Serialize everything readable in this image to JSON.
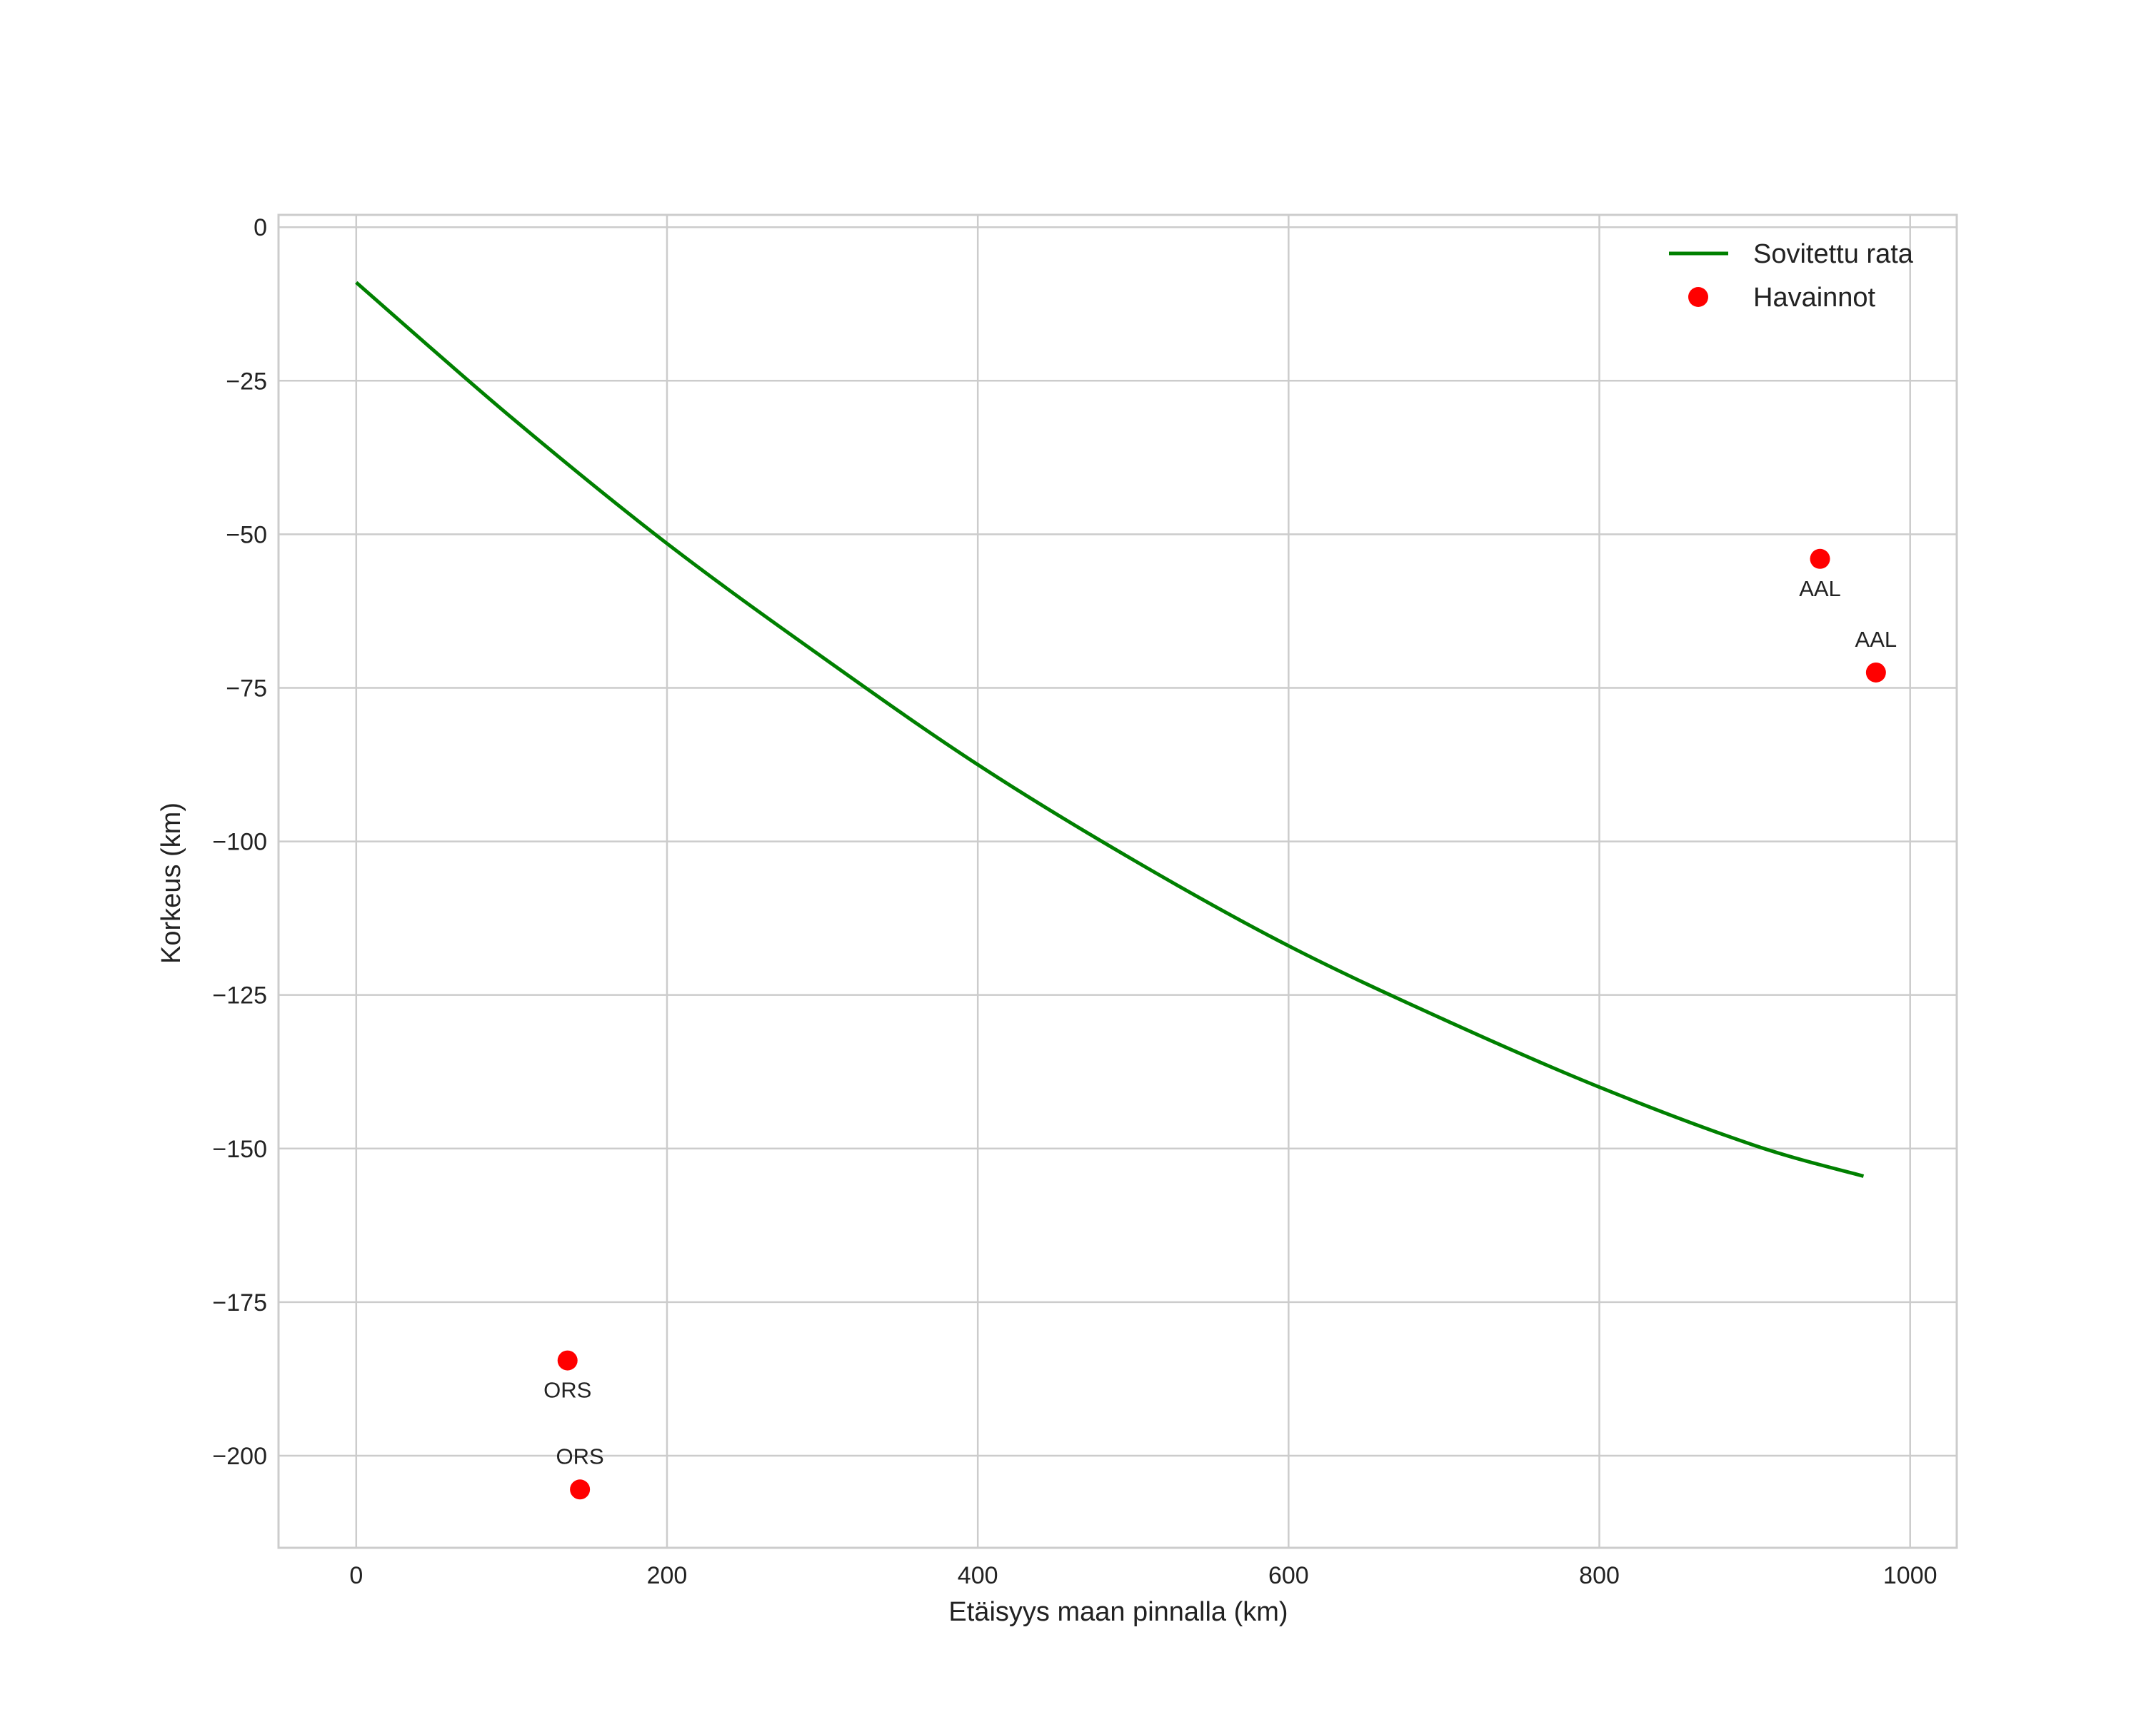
{
  "chart_data": {
    "type": "line",
    "title": "",
    "xlabel": "Etäisyys maan pinnalla (km)",
    "ylabel": "Korkeus (km)",
    "xlim": [
      -50,
      1030
    ],
    "ylim": [
      -215,
      2
    ],
    "grid": true,
    "legend_position": "top-right",
    "x_ticks": [
      0,
      200,
      400,
      600,
      800,
      1000
    ],
    "x_tick_labels": [
      "0",
      "200",
      "400",
      "600",
      "800",
      "1000"
    ],
    "y_ticks": [
      0,
      -25,
      -50,
      -75,
      -100,
      -125,
      -150,
      -175,
      -200
    ],
    "y_tick_labels": [
      "0",
      "−25",
      "−50",
      "−75",
      "−100",
      "−125",
      "−150",
      "−175",
      "−200"
    ],
    "series": [
      {
        "name": "Sovitettu rata",
        "type": "line",
        "color": "#008000",
        "x": [
          0,
          100,
          200,
          300,
          400,
          500,
          600,
          700,
          800,
          900,
          970
        ],
        "y": [
          -9,
          -31,
          -51.5,
          -70,
          -87.5,
          -103,
          -117,
          -129,
          -140,
          -149.5,
          -154.5
        ]
      },
      {
        "name": "Havainnot",
        "type": "scatter",
        "color": "#ff0000",
        "points": [
          {
            "x": 942,
            "y": -54,
            "label": "AAL",
            "label_pos": "below"
          },
          {
            "x": 978,
            "y": -72.5,
            "label": "AAL",
            "label_pos": "above"
          },
          {
            "x": 136,
            "y": -184.5,
            "label": "ORS",
            "label_pos": "below"
          },
          {
            "x": 144,
            "y": -205.5,
            "label": "ORS",
            "label_pos": "above"
          }
        ]
      }
    ]
  }
}
